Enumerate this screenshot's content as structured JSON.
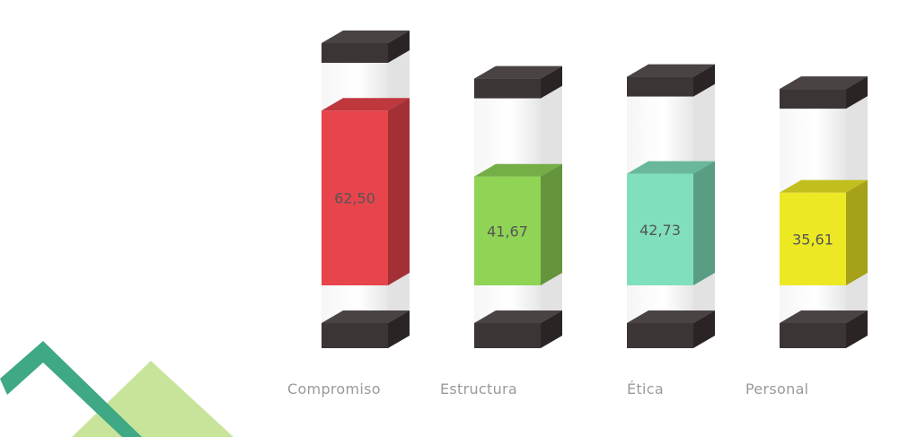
{
  "chart_data": {
    "type": "bar",
    "style": "3d-cylinder-column",
    "categories": [
      "Compromiso",
      "Estructura",
      "Ética",
      "Personal"
    ],
    "values": [
      62.5,
      41.67,
      42.73,
      35.61
    ],
    "value_labels": [
      "62,50",
      "41,67",
      "42,73",
      "35,61"
    ],
    "colors": [
      "#e8444c",
      "#8fd455",
      "#7fe0bb",
      "#ece824"
    ],
    "ylim": [
      0,
      100
    ],
    "grid": false,
    "legend": "none"
  },
  "logo": {
    "colors": [
      "#3fa884",
      "#c8e49a"
    ]
  }
}
